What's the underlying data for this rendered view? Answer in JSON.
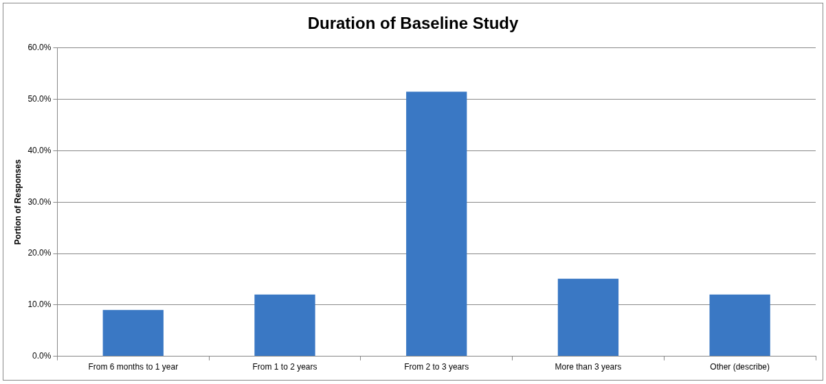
{
  "chart_data": {
    "type": "bar",
    "title": "Duration of Baseline Study",
    "ylabel": "Portion of Responses",
    "categories": [
      "From 6 months to 1 year",
      "From 1 to 2 years",
      "From 2 to 3 years",
      "More than 3 years",
      "Other (describe)"
    ],
    "values": [
      9.0,
      12.0,
      51.5,
      15.1,
      12.0
    ],
    "color": "#3a78c4",
    "ylim": [
      0,
      60
    ],
    "yticks": [
      {
        "value": 0,
        "label": "0.0%"
      },
      {
        "value": 10,
        "label": "10.0%"
      },
      {
        "value": 20,
        "label": "20.0%"
      },
      {
        "value": 30,
        "label": "30.0%"
      },
      {
        "value": 40,
        "label": "40.0%"
      },
      {
        "value": 50,
        "label": "50.0%"
      },
      {
        "value": 60,
        "label": "60.0%"
      }
    ],
    "grid": "y",
    "legend": false
  }
}
